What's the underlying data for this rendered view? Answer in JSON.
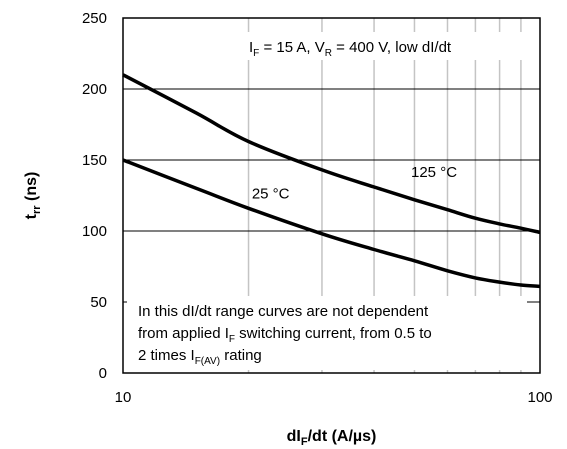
{
  "chart_data": {
    "type": "line",
    "x_scale": "log",
    "x_ticks": [
      10,
      100
    ],
    "x_tick_labels": [
      "10",
      "100"
    ],
    "x_minor_gridlines": [
      20,
      30,
      40,
      50,
      60,
      70,
      80,
      90
    ],
    "xlim": [
      10,
      100
    ],
    "ylim": [
      0,
      250
    ],
    "y_ticks": [
      0,
      50,
      100,
      150,
      200,
      250
    ],
    "y_tick_labels": [
      "0",
      "50",
      "100",
      "150",
      "200",
      "250"
    ],
    "grid": true,
    "xlabel": {
      "main": "dI",
      "sub": "F",
      "rest": "/dt (A/µs)"
    },
    "ylabel": {
      "main": "t",
      "sub": "rr",
      "rest": " (ns)"
    },
    "conditions": {
      "p1": "I",
      "s1": "F",
      "p2": " = 15 A, V",
      "s2": "R",
      "p3": " = 400 V, low dI/dt"
    },
    "note": {
      "line1": "In this dI/dt range curves are not dependent",
      "line2": {
        "p1": "from applied I",
        "s1": "F",
        "p2": " switching current, from 0.5 to"
      },
      "line3": {
        "p1": "2 times I",
        "s1": "F(AV)",
        "p2": " rating"
      }
    },
    "series": [
      {
        "name": "125 °C",
        "x": [
          10,
          15,
          20,
          30,
          40,
          50,
          60,
          70,
          80,
          90,
          100
        ],
        "y": [
          210,
          183,
          163,
          143,
          131,
          122,
          115,
          109,
          105,
          102,
          99
        ]
      },
      {
        "name": "25 °C",
        "x": [
          10,
          15,
          20,
          30,
          40,
          50,
          60,
          70,
          80,
          90,
          100
        ],
        "y": [
          150,
          130,
          116,
          98,
          87,
          79,
          72,
          67,
          64,
          62,
          61
        ]
      }
    ],
    "curve_labels": [
      {
        "text": "25 °C",
        "x": 22.6,
        "y": 123
      },
      {
        "text": "125 °C",
        "x": 55.7,
        "y": 138
      }
    ]
  }
}
